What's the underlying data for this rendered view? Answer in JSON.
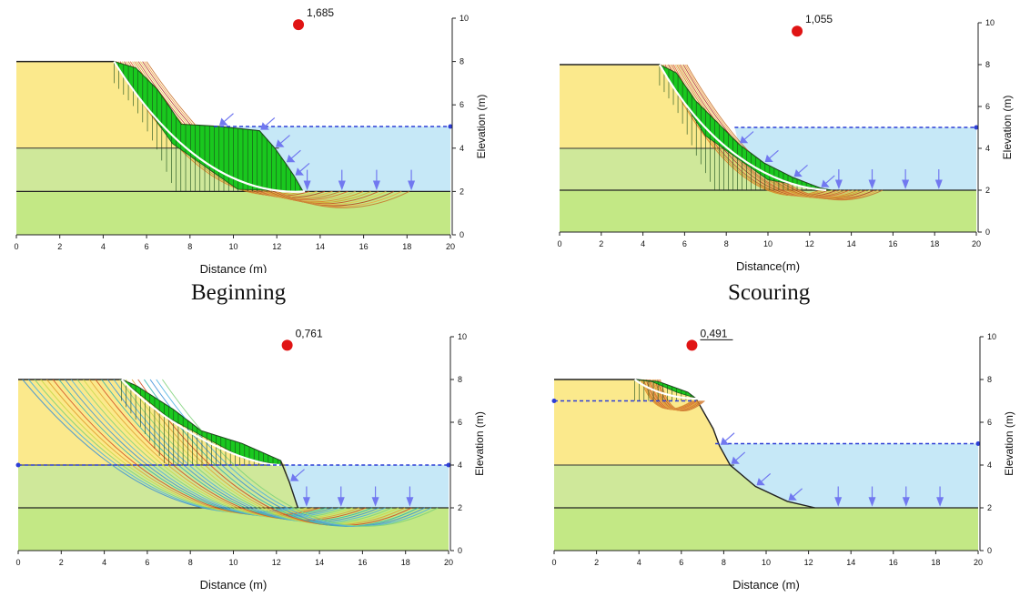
{
  "colors": {
    "upper_layer": "#fbe98c",
    "middle_layer": "#cfe89a",
    "lower_layer": "#c3e885",
    "water": "#c6e8f7",
    "sliding_mass": "#19c81e",
    "water_line": "#2d3ed6",
    "water_arrow": "#7178f0",
    "fs_marker": "#e01414",
    "critical_surface": "#ffffff"
  },
  "panels": [
    {
      "id": "beginning",
      "caption": "Beginning",
      "fs": "1,685",
      "xlabel": "Distance (m)",
      "ylabel": "Elevation (m)",
      "xticks": [
        "0",
        "2",
        "4",
        "6",
        "8",
        "10",
        "12",
        "14",
        "16",
        "18",
        "20"
      ],
      "yticks": [
        "0",
        "2",
        "4",
        "6",
        "8",
        "10"
      ]
    },
    {
      "id": "scouring",
      "caption": "Scouring",
      "fs": "1,055",
      "xlabel": "Distance(m)",
      "ylabel": "Elevation (m)",
      "xticks": [
        "0",
        "2",
        "4",
        "6",
        "8",
        "10",
        "12",
        "14",
        "16",
        "18",
        "20"
      ],
      "yticks": [
        "0",
        "2",
        "4",
        "6",
        "8",
        "10"
      ]
    },
    {
      "id": "water-drop",
      "caption": "",
      "fs": "0,761",
      "xlabel": "Distance (m)",
      "ylabel": "Elevation (m)",
      "xticks": [
        "0",
        "2",
        "4",
        "6",
        "8",
        "10",
        "12",
        "14",
        "16",
        "18",
        "20"
      ],
      "yticks": [
        "0",
        "2",
        "4",
        "6",
        "8",
        "10"
      ]
    },
    {
      "id": "collapse",
      "caption": "",
      "fs": "0,491",
      "xlabel": "Distance (m)",
      "ylabel": "Elevation (m)",
      "xticks": [
        "0",
        "2",
        "4",
        "6",
        "8",
        "10",
        "12",
        "14",
        "16",
        "18",
        "20"
      ],
      "yticks": [
        "0",
        "2",
        "4",
        "6",
        "8",
        "10"
      ]
    }
  ]
}
